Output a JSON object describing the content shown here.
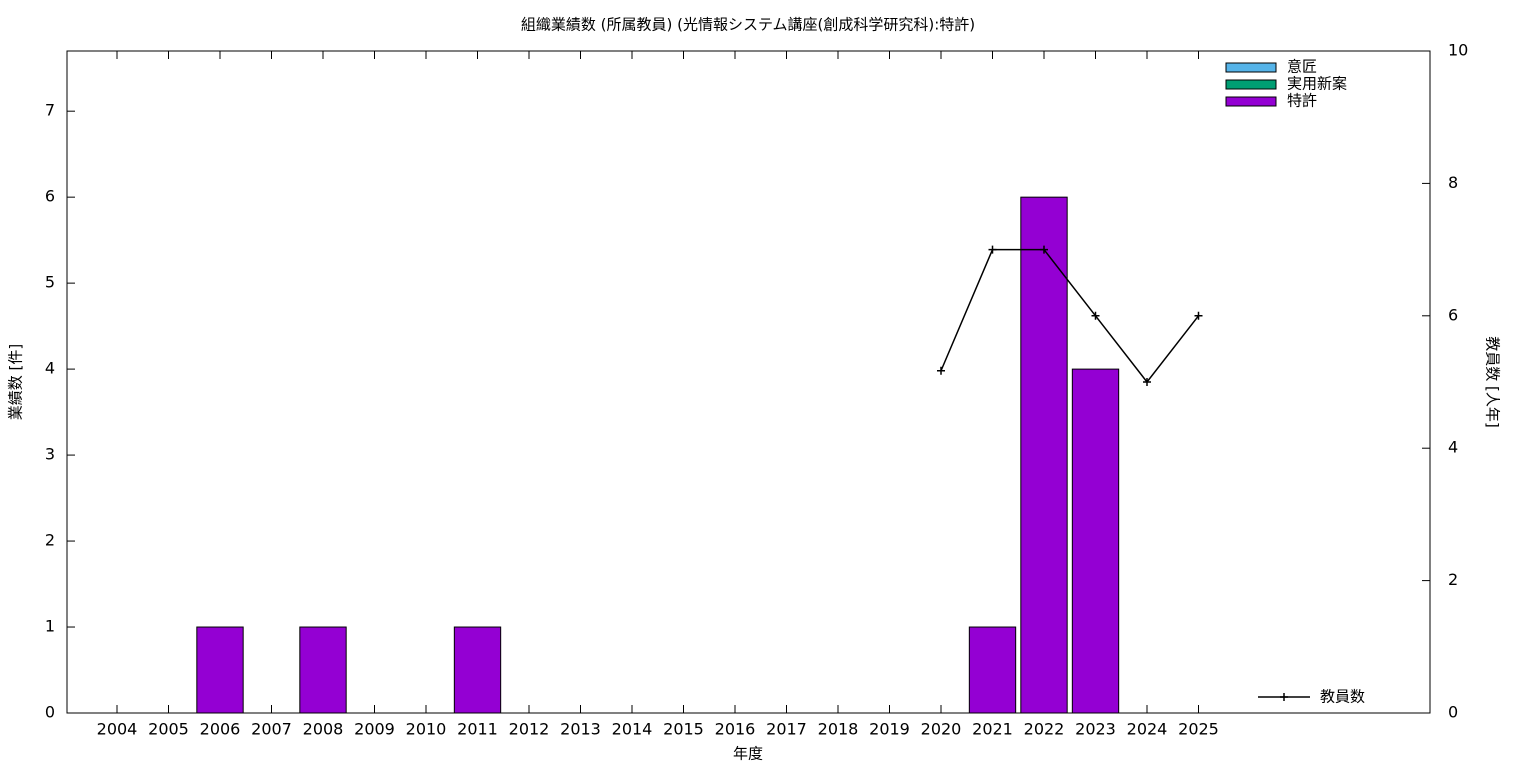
{
  "chart_data": {
    "type": "bar",
    "stacked": true,
    "title": "組織業績数 (所属教員) (光情報システム講座(創成科学研究科):特許)",
    "xlabel": "年度",
    "ylabel": "業績数 [件]",
    "y2label": "教員数 [人年]",
    "categories": [
      "2004",
      "2005",
      "2006",
      "2007",
      "2008",
      "2009",
      "2010",
      "2011",
      "2012",
      "2013",
      "2014",
      "2015",
      "2016",
      "2017",
      "2018",
      "2019",
      "2020",
      "2021",
      "2022",
      "2023",
      "2024",
      "2025"
    ],
    "series": [
      {
        "name": "意匠",
        "color": "#56b4e9",
        "values": [
          0,
          0,
          0,
          0,
          0,
          0,
          0,
          0,
          0,
          0,
          0,
          0,
          0,
          0,
          0,
          0,
          0,
          0,
          0,
          0,
          0,
          0
        ]
      },
      {
        "name": "実用新案",
        "color": "#009e73",
        "values": [
          0,
          0,
          0,
          0,
          0,
          0,
          0,
          0,
          0,
          0,
          0,
          0,
          0,
          0,
          0,
          0,
          0,
          0,
          0,
          0,
          0,
          0
        ]
      },
      {
        "name": "特許",
        "color": "#9400d3",
        "values": [
          0,
          0,
          1,
          0,
          1,
          0,
          0,
          1,
          0,
          0,
          0,
          0,
          0,
          0,
          0,
          0,
          0,
          1,
          6,
          4,
          0,
          0
        ]
      },
      {
        "name": "教員数",
        "type": "line",
        "axis": "y2",
        "color": "#000000",
        "values": [
          null,
          null,
          null,
          null,
          null,
          null,
          null,
          null,
          null,
          null,
          null,
          null,
          null,
          null,
          null,
          null,
          5.17,
          7,
          7,
          6,
          5,
          6
        ]
      }
    ],
    "ylim": [
      0,
      7.7
    ],
    "yticks": [
      0,
      1,
      2,
      3,
      4,
      5,
      6,
      7
    ],
    "y2lim": [
      0,
      10
    ],
    "y2ticks": [
      0,
      2,
      4,
      6,
      8,
      10
    ],
    "legend": "top right",
    "line_legend": "bottom right"
  }
}
